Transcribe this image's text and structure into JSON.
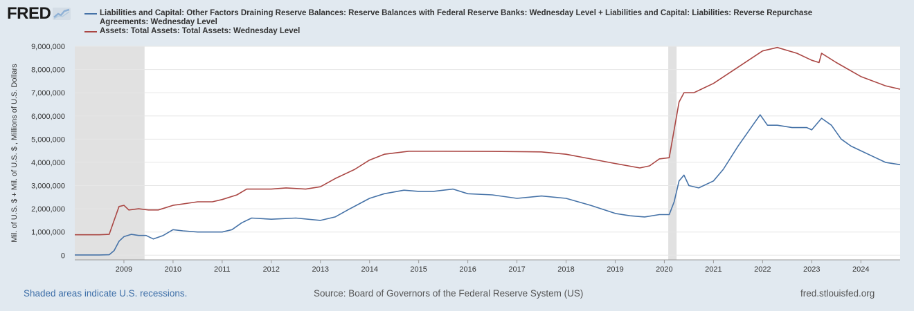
{
  "header": {
    "logo_text": "FRED",
    "logo_icon": "chart-line-icon"
  },
  "legend": [
    {
      "label": "Liabilities and Capital: Other Factors Draining Reserve Balances: Reserve Balances with Federal Reserve Banks: Wednesday Level + Liabilities and Capital: Liabilities: Reverse Repurchase Agreements: Wednesday Level",
      "color": "#4572a7"
    },
    {
      "label": "Assets: Total Assets: Total Assets: Wednesday Level",
      "color": "#aa4643"
    }
  ],
  "footer": {
    "note": "Shaded areas indicate U.S. recessions.",
    "source": "Source: Board of Governors of the Federal Reserve System (US)",
    "site": "fred.stlouisfed.org"
  },
  "chart_data": {
    "type": "line",
    "ylabel": "Mil. of U.S. $ + Mil. of U.S. $ , Millions of U.S. Dollars",
    "xlabel": "",
    "xlim": [
      2008.0,
      2024.8
    ],
    "ylim": [
      -200000,
      9000000
    ],
    "y_ticks": [
      0,
      1000000,
      2000000,
      3000000,
      4000000,
      5000000,
      6000000,
      7000000,
      8000000,
      9000000
    ],
    "y_tick_labels": [
      "0",
      "1,000,000",
      "2,000,000",
      "3,000,000",
      "4,000,000",
      "5,000,000",
      "6,000,000",
      "7,000,000",
      "8,000,000",
      "9,000,000"
    ],
    "x_ticks": [
      2009,
      2010,
      2011,
      2012,
      2013,
      2014,
      2015,
      2016,
      2017,
      2018,
      2019,
      2020,
      2021,
      2022,
      2023,
      2024
    ],
    "x_tick_labels": [
      "2009",
      "2010",
      "2011",
      "2012",
      "2013",
      "2014",
      "2015",
      "2016",
      "2017",
      "2018",
      "2019",
      "2020",
      "2021",
      "2022",
      "2023",
      "2024"
    ],
    "recessions": [
      [
        2008.0,
        2009.42
      ],
      [
        2020.08,
        2020.25
      ]
    ],
    "grid": true,
    "series": [
      {
        "name": "Liabilities and Capital: Other Factors Draining Reserve Balances: Reserve Balances with Federal Reserve Banks: Wednesday Level + Liabilities and Capital: Liabilities: Reverse Repurchase Agreements: Wednesday Level",
        "color": "#4572a7",
        "points": [
          [
            2008.0,
            10000
          ],
          [
            2008.5,
            10000
          ],
          [
            2008.7,
            20000
          ],
          [
            2008.8,
            200000
          ],
          [
            2008.9,
            600000
          ],
          [
            2009.0,
            800000
          ],
          [
            2009.15,
            900000
          ],
          [
            2009.3,
            850000
          ],
          [
            2009.45,
            850000
          ],
          [
            2009.6,
            700000
          ],
          [
            2009.8,
            850000
          ],
          [
            2010.0,
            1100000
          ],
          [
            2010.2,
            1050000
          ],
          [
            2010.5,
            1000000
          ],
          [
            2010.8,
            1000000
          ],
          [
            2011.0,
            1000000
          ],
          [
            2011.2,
            1100000
          ],
          [
            2011.4,
            1400000
          ],
          [
            2011.6,
            1600000
          ],
          [
            2012.0,
            1550000
          ],
          [
            2012.5,
            1600000
          ],
          [
            2013.0,
            1500000
          ],
          [
            2013.3,
            1650000
          ],
          [
            2013.6,
            2000000
          ],
          [
            2014.0,
            2450000
          ],
          [
            2014.3,
            2650000
          ],
          [
            2014.7,
            2800000
          ],
          [
            2015.0,
            2750000
          ],
          [
            2015.3,
            2750000
          ],
          [
            2015.7,
            2850000
          ],
          [
            2016.0,
            2650000
          ],
          [
            2016.5,
            2600000
          ],
          [
            2017.0,
            2450000
          ],
          [
            2017.5,
            2550000
          ],
          [
            2018.0,
            2450000
          ],
          [
            2018.5,
            2150000
          ],
          [
            2019.0,
            1800000
          ],
          [
            2019.3,
            1700000
          ],
          [
            2019.6,
            1650000
          ],
          [
            2019.9,
            1750000
          ],
          [
            2020.1,
            1750000
          ],
          [
            2020.2,
            2300000
          ],
          [
            2020.3,
            3200000
          ],
          [
            2020.4,
            3450000
          ],
          [
            2020.5,
            3000000
          ],
          [
            2020.7,
            2900000
          ],
          [
            2021.0,
            3200000
          ],
          [
            2021.2,
            3700000
          ],
          [
            2021.5,
            4700000
          ],
          [
            2021.8,
            5600000
          ],
          [
            2021.95,
            6050000
          ],
          [
            2022.1,
            5600000
          ],
          [
            2022.3,
            5600000
          ],
          [
            2022.6,
            5500000
          ],
          [
            2022.9,
            5500000
          ],
          [
            2023.0,
            5400000
          ],
          [
            2023.2,
            5900000
          ],
          [
            2023.4,
            5600000
          ],
          [
            2023.6,
            5000000
          ],
          [
            2023.8,
            4700000
          ],
          [
            2024.0,
            4500000
          ],
          [
            2024.3,
            4200000
          ],
          [
            2024.5,
            4000000
          ],
          [
            2024.8,
            3900000
          ]
        ]
      },
      {
        "name": "Assets: Total Assets: Total Assets: Wednesday Level",
        "color": "#aa4643",
        "points": [
          [
            2008.0,
            880000
          ],
          [
            2008.5,
            880000
          ],
          [
            2008.7,
            900000
          ],
          [
            2008.8,
            1500000
          ],
          [
            2008.9,
            2100000
          ],
          [
            2009.0,
            2150000
          ],
          [
            2009.1,
            1950000
          ],
          [
            2009.3,
            2000000
          ],
          [
            2009.5,
            1950000
          ],
          [
            2009.7,
            1950000
          ],
          [
            2010.0,
            2150000
          ],
          [
            2010.5,
            2300000
          ],
          [
            2010.8,
            2300000
          ],
          [
            2011.0,
            2400000
          ],
          [
            2011.3,
            2600000
          ],
          [
            2011.5,
            2850000
          ],
          [
            2012.0,
            2850000
          ],
          [
            2012.3,
            2900000
          ],
          [
            2012.7,
            2850000
          ],
          [
            2013.0,
            2950000
          ],
          [
            2013.3,
            3300000
          ],
          [
            2013.7,
            3700000
          ],
          [
            2014.0,
            4100000
          ],
          [
            2014.3,
            4350000
          ],
          [
            2014.8,
            4480000
          ],
          [
            2015.5,
            4480000
          ],
          [
            2016.5,
            4470000
          ],
          [
            2017.5,
            4450000
          ],
          [
            2018.0,
            4350000
          ],
          [
            2018.5,
            4150000
          ],
          [
            2019.0,
            3950000
          ],
          [
            2019.5,
            3760000
          ],
          [
            2019.7,
            3850000
          ],
          [
            2019.9,
            4150000
          ],
          [
            2020.1,
            4200000
          ],
          [
            2020.2,
            5400000
          ],
          [
            2020.3,
            6600000
          ],
          [
            2020.4,
            7000000
          ],
          [
            2020.6,
            7000000
          ],
          [
            2021.0,
            7400000
          ],
          [
            2021.5,
            8100000
          ],
          [
            2022.0,
            8800000
          ],
          [
            2022.3,
            8950000
          ],
          [
            2022.7,
            8700000
          ],
          [
            2023.0,
            8400000
          ],
          [
            2023.15,
            8300000
          ],
          [
            2023.2,
            8700000
          ],
          [
            2023.5,
            8300000
          ],
          [
            2024.0,
            7700000
          ],
          [
            2024.5,
            7300000
          ],
          [
            2024.8,
            7150000
          ]
        ]
      }
    ]
  }
}
